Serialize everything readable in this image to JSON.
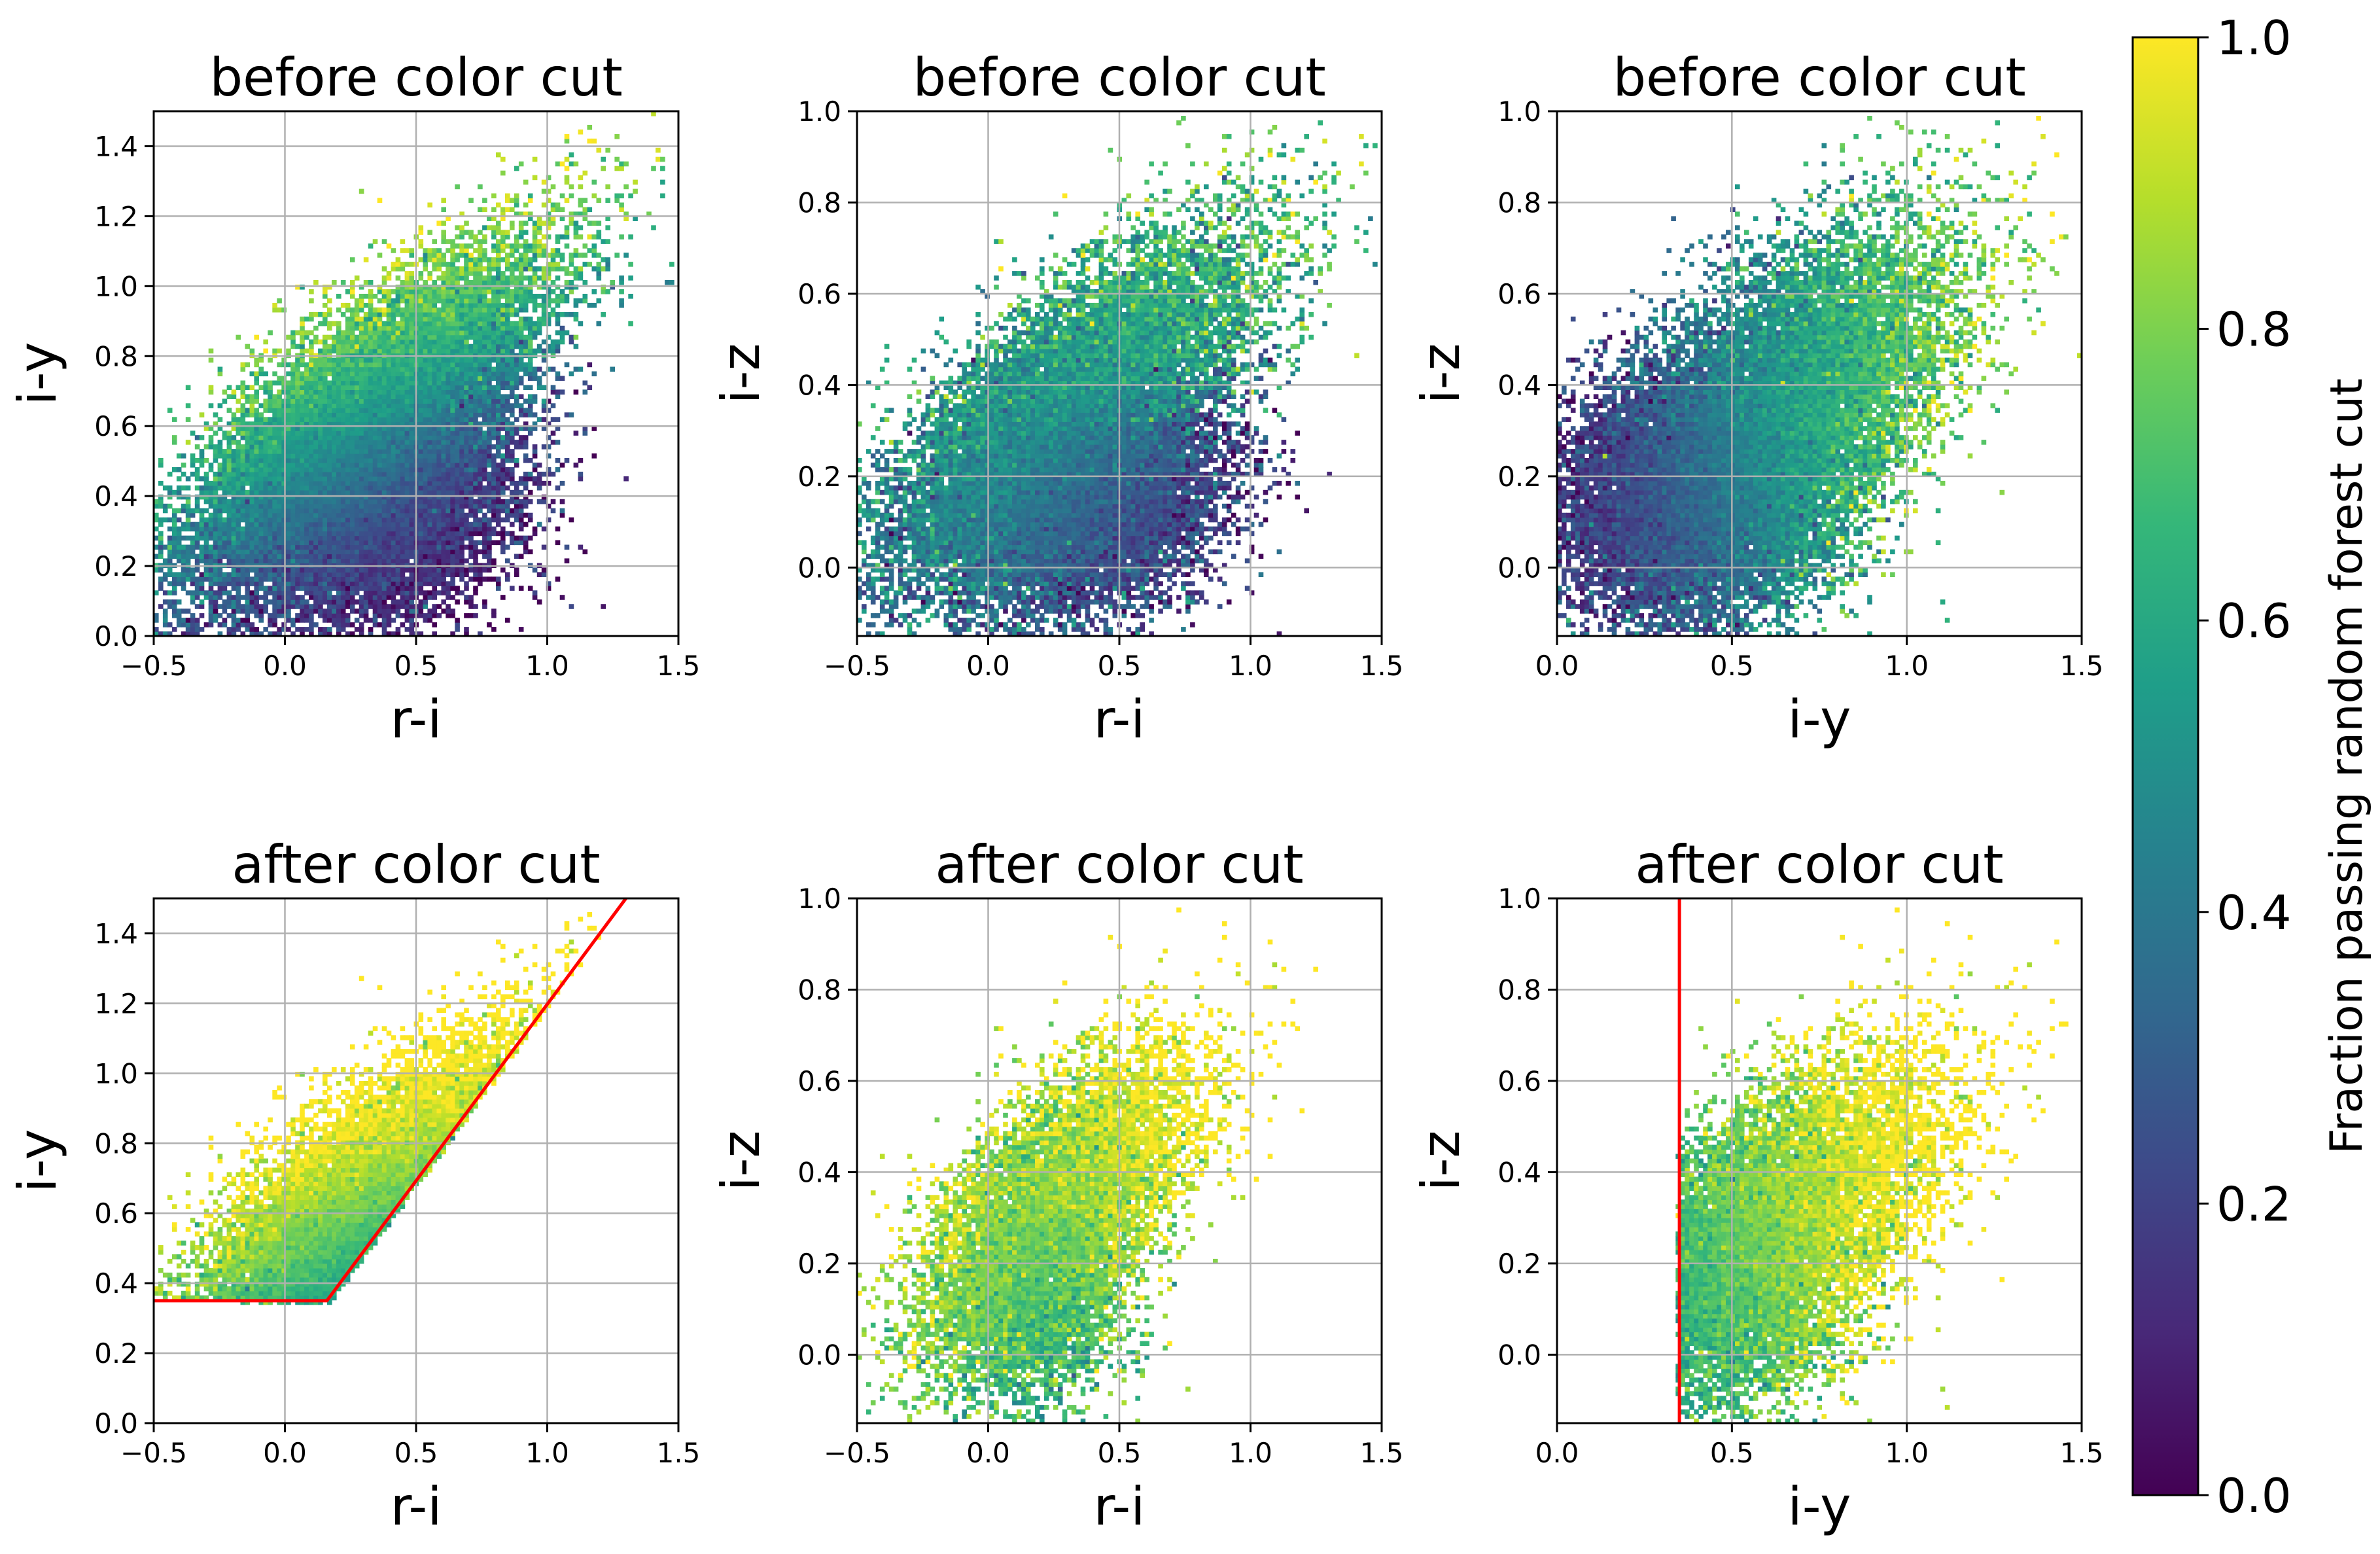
{
  "chart_data": [
    {
      "type": "heatmap",
      "panel": "top-left",
      "title": "before color cut",
      "xlabel": "r-i",
      "ylabel": "i-y",
      "xlim": [
        -0.5,
        1.5
      ],
      "ylim": [
        0.0,
        1.5
      ],
      "xticks": [
        "−0.5",
        "0.0",
        "0.5",
        "1.0",
        "1.5"
      ],
      "yticks": [
        "0.0",
        "0.2",
        "0.4",
        "0.6",
        "0.8",
        "1.0",
        "1.2",
        "1.4"
      ],
      "xtick_values": [
        -0.5,
        0.0,
        0.5,
        1.0,
        1.5
      ],
      "ytick_values": [
        0.0,
        0.2,
        0.4,
        0.6,
        0.8,
        1.0,
        1.2,
        1.4
      ],
      "grid": true,
      "filled": false,
      "cut_line": null
    },
    {
      "type": "heatmap",
      "panel": "top-center",
      "title": "before color cut",
      "xlabel": "r-i",
      "ylabel": "i-z",
      "xlim": [
        -0.5,
        1.5
      ],
      "ylim": [
        -0.15,
        1.0
      ],
      "xticks": [
        "−0.5",
        "0.0",
        "0.5",
        "1.0",
        "1.5"
      ],
      "yticks": [
        "0.0",
        "0.2",
        "0.4",
        "0.6",
        "0.8",
        "1.0"
      ],
      "xtick_values": [
        -0.5,
        0.0,
        0.5,
        1.0,
        1.5
      ],
      "ytick_values": [
        0.0,
        0.2,
        0.4,
        0.6,
        0.8,
        1.0
      ],
      "grid": true,
      "filled": false,
      "cut_line": null
    },
    {
      "type": "heatmap",
      "panel": "top-right",
      "title": "before color cut",
      "xlabel": "i-y",
      "ylabel": "i-z",
      "xlim": [
        0.0,
        1.5
      ],
      "ylim": [
        -0.15,
        1.0
      ],
      "xticks": [
        "0.0",
        "0.5",
        "1.0",
        "1.5"
      ],
      "yticks": [
        "0.0",
        "0.2",
        "0.4",
        "0.6",
        "0.8",
        "1.0"
      ],
      "xtick_values": [
        0.0,
        0.5,
        1.0,
        1.5
      ],
      "ytick_values": [
        0.0,
        0.2,
        0.4,
        0.6,
        0.8,
        1.0
      ],
      "grid": true,
      "filled": false,
      "cut_line": null
    },
    {
      "type": "heatmap",
      "panel": "bottom-left",
      "title": "after color cut",
      "xlabel": "r-i",
      "ylabel": "i-y",
      "xlim": [
        -0.5,
        1.5
      ],
      "ylim": [
        0.0,
        1.5
      ],
      "xticks": [
        "−0.5",
        "0.0",
        "0.5",
        "1.0",
        "1.5"
      ],
      "yticks": [
        "0.0",
        "0.2",
        "0.4",
        "0.6",
        "0.8",
        "1.0",
        "1.2",
        "1.4"
      ],
      "xtick_values": [
        -0.5,
        0.0,
        0.5,
        1.0,
        1.5
      ],
      "ytick_values": [
        0.0,
        0.2,
        0.4,
        0.6,
        0.8,
        1.0,
        1.2,
        1.4
      ],
      "grid": true,
      "filled": true,
      "cut_line": {
        "color": "#ff0000",
        "points": [
          [
            -0.5,
            0.35
          ],
          [
            0.16,
            0.35
          ],
          [
            1.3,
            1.5
          ]
        ]
      }
    },
    {
      "type": "heatmap",
      "panel": "bottom-center",
      "title": "after color cut",
      "xlabel": "r-i",
      "ylabel": "i-z",
      "xlim": [
        -0.5,
        1.5
      ],
      "ylim": [
        -0.15,
        1.0
      ],
      "xticks": [
        "−0.5",
        "0.0",
        "0.5",
        "1.0",
        "1.5"
      ],
      "yticks": [
        "0.0",
        "0.2",
        "0.4",
        "0.6",
        "0.8",
        "1.0"
      ],
      "xtick_values": [
        -0.5,
        0.0,
        0.5,
        1.0,
        1.5
      ],
      "ytick_values": [
        0.0,
        0.2,
        0.4,
        0.6,
        0.8,
        1.0
      ],
      "grid": true,
      "filled": true,
      "cut_line": null
    },
    {
      "type": "heatmap",
      "panel": "bottom-right",
      "title": "after color cut",
      "xlabel": "i-y",
      "ylabel": "i-z",
      "xlim": [
        0.0,
        1.5
      ],
      "ylim": [
        -0.15,
        1.0
      ],
      "xticks": [
        "0.0",
        "0.5",
        "1.0",
        "1.5"
      ],
      "yticks": [
        "0.0",
        "0.2",
        "0.4",
        "0.6",
        "0.8",
        "1.0"
      ],
      "xtick_values": [
        0.0,
        0.5,
        1.0,
        1.5
      ],
      "ytick_values": [
        0.0,
        0.2,
        0.4,
        0.6,
        0.8,
        1.0
      ],
      "grid": true,
      "filled": true,
      "cut_line": {
        "color": "#ff0000",
        "points": [
          [
            0.35,
            -0.15
          ],
          [
            0.35,
            1.0
          ]
        ]
      }
    }
  ],
  "colorbar": {
    "label": "Fraction passing random forest cut",
    "ticks": [
      "0.0",
      "0.2",
      "0.4",
      "0.6",
      "0.8",
      "1.0"
    ],
    "tick_values": [
      0.0,
      0.2,
      0.4,
      0.6,
      0.8,
      1.0
    ],
    "range": [
      0.0,
      1.0
    ],
    "colormap": "viridis",
    "stops": [
      "#440154",
      "#482878",
      "#3e4989",
      "#31688e",
      "#26828e",
      "#1f9e89",
      "#35b779",
      "#6ece58",
      "#b5de2b",
      "#fde725"
    ]
  }
}
